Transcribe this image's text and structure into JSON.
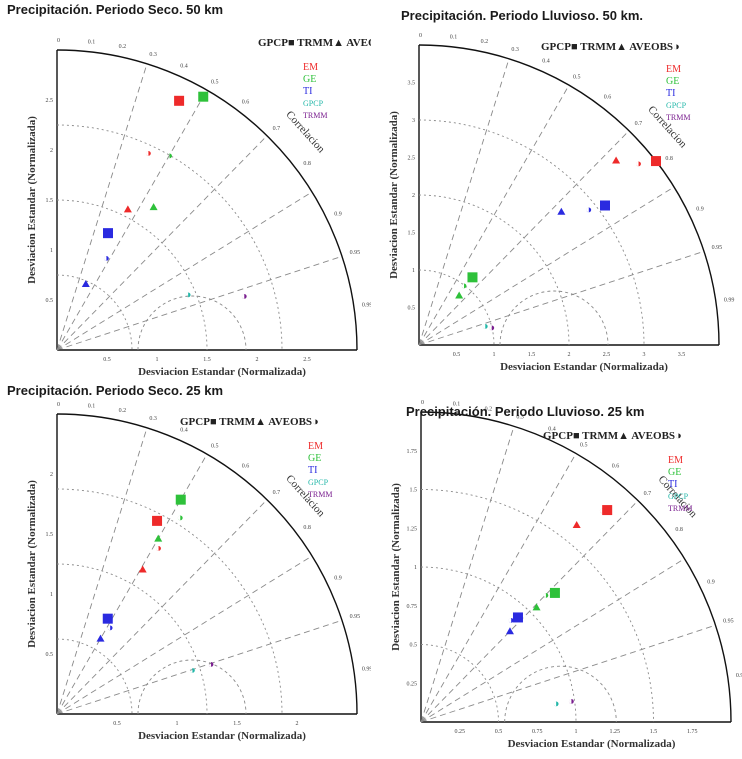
{
  "colors": {
    "EM": "#ee2a2a",
    "GE": "#2ec13a",
    "TI": "#2a2ae0",
    "GPCP": "#22b7a8",
    "TRMM": "#7a1f8f",
    "axis": "#111111",
    "grid": "#8a8a8a"
  },
  "panel_labels": {
    "top_legend": "GPCP■  TRMM▲  AVEOBS◑",
    "correlation": "Correlacion",
    "xlabel": "Desviacion Estandar (Normalizada)",
    "ylabel": "Desviacion Estandar (Normalizada)",
    "corr_ticks": [
      "0.99",
      "0.95",
      "0.9",
      "0.8",
      "0.7",
      "0.6",
      "0.5",
      "0.4",
      "0.3",
      "0.2",
      "0.1",
      "0"
    ],
    "legend": [
      {
        "key": "EM",
        "label": "EM"
      },
      {
        "key": "GE",
        "label": "GE"
      },
      {
        "key": "TI",
        "label": "TI"
      },
      {
        "key": "GPCP",
        "label": "GPCP"
      },
      {
        "key": "TRMM",
        "label": "TRMM"
      }
    ]
  },
  "chart_data": [
    {
      "type": "scatter",
      "subtype": "taylor-diagram",
      "title": "Precipitación. Periodo Seco. 50 km",
      "rmax": 2.0,
      "ticks": [
        "0.5",
        "1",
        "1.5",
        "2",
        "2.5"
      ],
      "points": [
        {
          "model": "EM",
          "marker": "square",
          "std": 1.85,
          "corr": 0.44
        },
        {
          "model": "GE",
          "marker": "square",
          "std": 1.95,
          "corr": 0.5
        },
        {
          "model": "EM",
          "marker": "label",
          "std": 1.45,
          "corr": 0.42
        },
        {
          "model": "GE",
          "marker": "label",
          "std": 1.5,
          "corr": 0.5
        },
        {
          "model": "EM",
          "marker": "triangle",
          "std": 1.05,
          "corr": 0.45
        },
        {
          "model": "GE",
          "marker": "triangle",
          "std": 1.15,
          "corr": 0.56
        },
        {
          "model": "TI",
          "marker": "square",
          "std": 0.85,
          "corr": 0.4
        },
        {
          "model": "TI",
          "marker": "label",
          "std": 0.7,
          "corr": 0.47
        },
        {
          "model": "TI",
          "marker": "triangle",
          "std": 0.48,
          "corr": 0.4
        },
        {
          "model": "GPCP",
          "marker": "label",
          "std": 0.95,
          "corr": 0.92
        },
        {
          "model": "TRMM",
          "marker": "label",
          "std": 1.3,
          "corr": 0.96
        }
      ]
    },
    {
      "type": "scatter",
      "subtype": "taylor-diagram",
      "title": "Precipitación. Periodo Lluvioso. 50 km.",
      "rmax": 4.0,
      "ticks": [
        "0.5",
        "1",
        "1.5",
        "2",
        "2.5",
        "3",
        "3.5"
      ],
      "points": [
        {
          "model": "EM",
          "marker": "triangle",
          "std": 3.6,
          "corr": 0.73
        },
        {
          "model": "EM",
          "marker": "label",
          "std": 3.8,
          "corr": 0.77
        },
        {
          "model": "EM",
          "marker": "square",
          "std": 4.0,
          "corr": 0.79
        },
        {
          "model": "TI",
          "marker": "triangle",
          "std": 2.6,
          "corr": 0.73
        },
        {
          "model": "TI",
          "marker": "label",
          "std": 2.9,
          "corr": 0.78
        },
        {
          "model": "TI",
          "marker": "square",
          "std": 3.1,
          "corr": 0.8
        },
        {
          "model": "GE",
          "marker": "square",
          "std": 1.15,
          "corr": 0.62
        },
        {
          "model": "GE",
          "marker": "label",
          "std": 1.0,
          "corr": 0.6
        },
        {
          "model": "GE",
          "marker": "triangle",
          "std": 0.85,
          "corr": 0.63
        },
        {
          "model": "GPCP",
          "marker": "label",
          "std": 0.92,
          "corr": 0.96
        },
        {
          "model": "TRMM",
          "marker": "label",
          "std": 1.0,
          "corr": 0.97
        }
      ]
    },
    {
      "type": "scatter",
      "subtype": "taylor-diagram",
      "title": "Precipitación. Periodo Seco. 25 km",
      "rmax": 2.0,
      "ticks": [
        "0.5",
        "1",
        "1.5",
        "2"
      ],
      "points": [
        {
          "model": "GE",
          "marker": "square",
          "std": 1.65,
          "corr": 0.5
        },
        {
          "model": "GE",
          "marker": "label",
          "std": 1.55,
          "corr": 0.53
        },
        {
          "model": "EM",
          "marker": "square",
          "std": 1.45,
          "corr": 0.46
        },
        {
          "model": "GE",
          "marker": "triangle",
          "std": 1.35,
          "corr": 0.5
        },
        {
          "model": "EM",
          "marker": "label",
          "std": 1.3,
          "corr": 0.52
        },
        {
          "model": "EM",
          "marker": "triangle",
          "std": 1.12,
          "corr": 0.51
        },
        {
          "model": "TI",
          "marker": "square",
          "std": 0.72,
          "corr": 0.47
        },
        {
          "model": "TI",
          "marker": "label",
          "std": 0.68,
          "corr": 0.52
        },
        {
          "model": "TI",
          "marker": "triangle",
          "std": 0.58,
          "corr": 0.5
        },
        {
          "model": "GPCP",
          "marker": "label",
          "std": 0.95,
          "corr": 0.95
        },
        {
          "model": "TRMM",
          "marker": "label",
          "std": 1.08,
          "corr": 0.95
        }
      ]
    },
    {
      "type": "scatter",
      "subtype": "taylor-diagram",
      "title": "Precipitación. Periodo Lluvioso. 25 km",
      "rmax": 2.0,
      "ticks": [
        "0.25",
        "0.5",
        "0.75",
        "1",
        "1.25",
        "1.5",
        "1.75"
      ],
      "points": [
        {
          "model": "EM",
          "marker": "square",
          "std": 1.82,
          "corr": 0.66
        },
        {
          "model": "EM",
          "marker": "label",
          "std": 1.8,
          "corr": 0.65
        },
        {
          "model": "EM",
          "marker": "triangle",
          "std": 1.62,
          "corr": 0.62
        },
        {
          "model": "GE",
          "marker": "square",
          "std": 1.2,
          "corr": 0.72
        },
        {
          "model": "GE",
          "marker": "label",
          "std": 1.15,
          "corr": 0.7
        },
        {
          "model": "GE",
          "marker": "triangle",
          "std": 1.05,
          "corr": 0.71
        },
        {
          "model": "TI",
          "marker": "square",
          "std": 0.92,
          "corr": 0.68
        },
        {
          "model": "TI",
          "marker": "label",
          "std": 0.88,
          "corr": 0.66
        },
        {
          "model": "TI",
          "marker": "triangle",
          "std": 0.82,
          "corr": 0.7
        },
        {
          "model": "GPCP",
          "marker": "label",
          "std": 0.88,
          "corr": 0.99
        },
        {
          "model": "TRMM",
          "marker": "label",
          "std": 0.98,
          "corr": 0.99
        }
      ]
    }
  ]
}
